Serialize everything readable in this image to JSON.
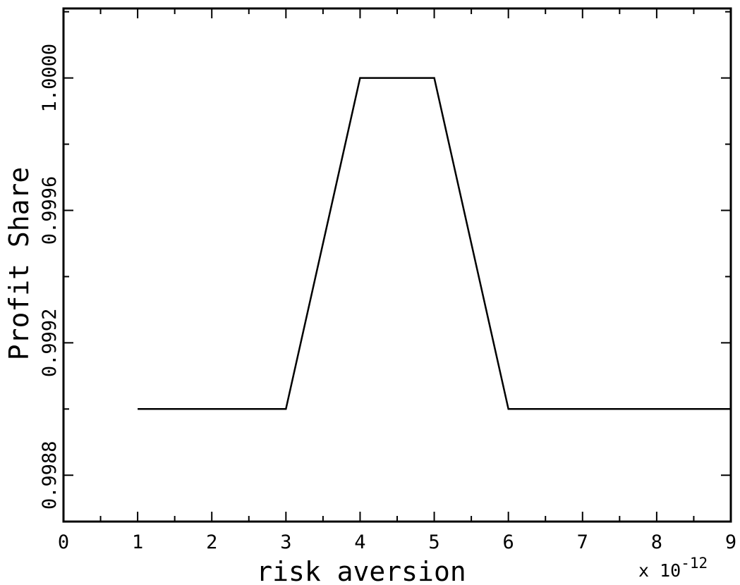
{
  "chart_data": {
    "type": "line",
    "xlabel": "risk aversion",
    "ylabel": "Profit Share",
    "x_multiplier_label": "x 10",
    "x_multiplier_exponent": "-12",
    "xlim": [
      0,
      9
    ],
    "ylim": [
      0.99866,
      1.00021
    ],
    "x_ticks": [
      0,
      1,
      2,
      3,
      4,
      5,
      6,
      7,
      8,
      9
    ],
    "x_tick_labels": [
      "0",
      "1",
      "2",
      "3",
      "4",
      "5",
      "6",
      "7",
      "8",
      "9"
    ],
    "y_ticks": [
      0.9988,
      0.9992,
      0.9996,
      1.0
    ],
    "y_tick_labels": [
      "0.9988",
      "0.9992",
      "0.9996",
      "1.0000"
    ],
    "grid": false,
    "legend": "none",
    "series": [
      {
        "x": [
          1,
          2,
          3,
          4,
          5,
          6,
          7,
          8,
          9
        ],
        "y": [
          0.999,
          0.999,
          0.999,
          1.0,
          1.0,
          0.999,
          0.999,
          0.999,
          0.999
        ]
      }
    ]
  }
}
